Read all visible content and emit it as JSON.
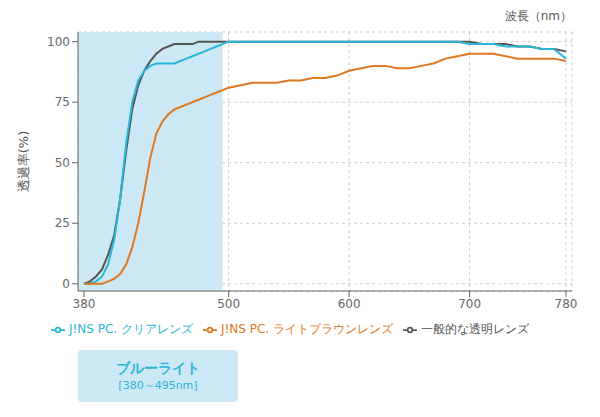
{
  "chart_data": {
    "type": "line",
    "x_label": "波長（nm）",
    "y_label": "透過率(%)",
    "x": [
      380,
      385,
      390,
      395,
      400,
      405,
      410,
      415,
      420,
      425,
      430,
      435,
      440,
      445,
      450,
      455,
      460,
      465,
      470,
      475,
      480,
      485,
      490,
      495,
      500,
      510,
      520,
      530,
      540,
      550,
      560,
      570,
      580,
      590,
      600,
      610,
      620,
      630,
      640,
      650,
      660,
      670,
      680,
      690,
      700,
      710,
      720,
      730,
      740,
      750,
      760,
      770,
      780
    ],
    "series": [
      {
        "name": "一般的な透明レンズ",
        "color": "#555555",
        "values": [
          0,
          1,
          3,
          6,
          12,
          20,
          35,
          55,
          72,
          82,
          88,
          92,
          95,
          97,
          98,
          99,
          99,
          99,
          99,
          100,
          100,
          100,
          100,
          100,
          100,
          100,
          100,
          100,
          100,
          100,
          100,
          100,
          100,
          100,
          100,
          100,
          100,
          100,
          100,
          100,
          100,
          100,
          100,
          100,
          100,
          99,
          99,
          99,
          98,
          98,
          97,
          97,
          96
        ]
      },
      {
        "name": "J!NS PC. クリアレンズ",
        "color": "#29b6d8",
        "values": [
          0,
          0,
          1,
          3,
          8,
          18,
          35,
          58,
          75,
          84,
          88,
          90,
          91,
          91,
          91,
          91,
          92,
          93,
          94,
          95,
          96,
          97,
          98,
          99,
          100,
          100,
          100,
          100,
          100,
          100,
          100,
          100,
          100,
          100,
          100,
          100,
          100,
          100,
          100,
          100,
          100,
          100,
          100,
          100,
          99,
          99,
          99,
          98,
          98,
          98,
          97,
          97,
          93
        ]
      },
      {
        "name": "J!NS PC. ライトブラウンレンズ",
        "color": "#e07820",
        "values": [
          0,
          0,
          0,
          0,
          1,
          2,
          4,
          8,
          15,
          25,
          38,
          52,
          62,
          67,
          70,
          72,
          73,
          74,
          75,
          76,
          77,
          78,
          79,
          80,
          81,
          82,
          83,
          83,
          83,
          84,
          84,
          85,
          85,
          86,
          88,
          89,
          90,
          90,
          89,
          89,
          90,
          91,
          93,
          94,
          95,
          95,
          95,
          94,
          93,
          93,
          93,
          93,
          92
        ]
      }
    ],
    "xlim": [
      375,
      785
    ],
    "xticks": [
      380,
      500,
      600,
      700,
      780
    ],
    "ylim": [
      -3,
      104
    ],
    "yticks": [
      0,
      25,
      50,
      75,
      100
    ],
    "grid": true,
    "legend": "bottom",
    "highlight": {
      "x": [
        375,
        495
      ],
      "color": "#cce8f4",
      "label": "ブルーライト",
      "sublabel": "[380～495nm]"
    }
  }
}
